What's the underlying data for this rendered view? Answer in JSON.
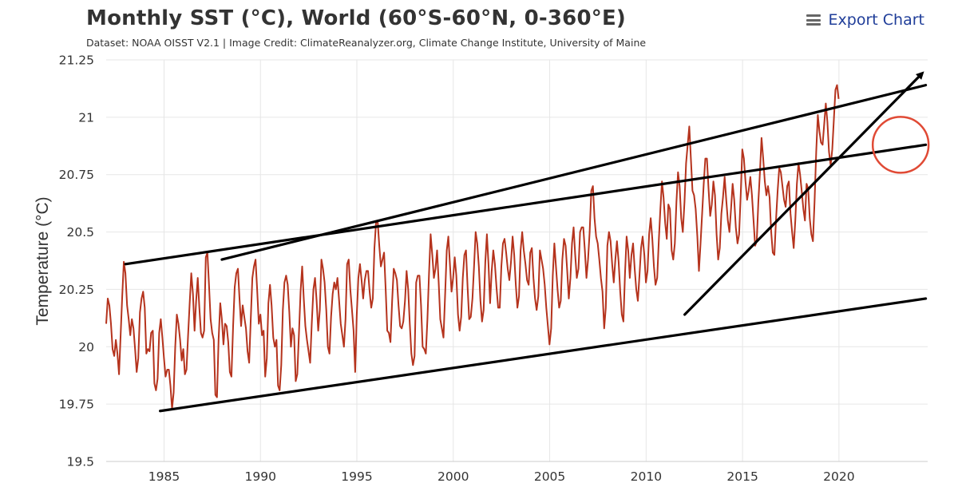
{
  "header": {
    "title": "Monthly SST (°C), World (60°S-60°N, 0-360°E)",
    "subtitle": "Dataset: NOAA OISST V2.1 | Image Credit: ClimateReanalyzer.org, Climate Change Institute, University of Maine",
    "export_label": "Export Chart",
    "menu_icon": "hamburger-menu-icon"
  },
  "chart_data": {
    "type": "line",
    "ylabel": "Temperature (°C)",
    "xlabel": "",
    "xlim": [
      1982.0,
      2024.6
    ],
    "ylim": [
      19.5,
      21.25
    ],
    "grid": true,
    "x_ticks": [
      1985,
      1990,
      1995,
      2000,
      2005,
      2010,
      2015,
      2020
    ],
    "y_ticks": [
      19.5,
      19.75,
      20,
      20.25,
      20.5,
      20.75,
      21,
      21.25
    ],
    "y_tick_labels": [
      "19.5",
      "19.75",
      "20",
      "20.25",
      "20.5",
      "20.75",
      "21",
      "21.25"
    ],
    "line_color": "#b5331d",
    "series": [
      {
        "x_start": 1982.0,
        "x_step": 0.0833,
        "values": [
          20.1,
          20.21,
          20.18,
          20.1,
          19.99,
          19.96,
          20.03,
          19.97,
          19.88,
          20.05,
          20.22,
          20.37,
          20.32,
          20.18,
          20.12,
          20.05,
          20.12,
          20.08,
          19.99,
          19.89,
          19.95,
          20.15,
          20.21,
          20.24,
          20.17,
          19.97,
          19.99,
          19.98,
          20.06,
          20.07,
          19.84,
          19.81,
          19.86,
          20.06,
          20.12,
          20.04,
          19.95,
          19.87,
          19.9,
          19.9,
          19.83,
          19.73,
          19.8,
          20.0,
          20.14,
          20.1,
          20.03,
          19.94,
          19.99,
          19.88,
          19.9,
          20.05,
          20.19,
          20.32,
          20.23,
          20.07,
          20.2,
          20.3,
          20.17,
          20.06,
          20.04,
          20.07,
          20.39,
          20.41,
          20.27,
          20.12,
          20.06,
          20.03,
          19.79,
          19.78,
          20.03,
          20.19,
          20.12,
          20.01,
          20.1,
          20.09,
          20.02,
          19.89,
          19.87,
          20.09,
          20.26,
          20.32,
          20.34,
          20.21,
          20.09,
          20.18,
          20.13,
          20.08,
          19.98,
          19.93,
          20.12,
          20.3,
          20.35,
          20.38,
          20.25,
          20.1,
          20.14,
          20.05,
          20.07,
          19.87,
          19.95,
          20.19,
          20.27,
          20.18,
          20.04,
          20.0,
          20.03,
          19.83,
          19.81,
          19.92,
          20.16,
          20.28,
          20.31,
          20.27,
          20.15,
          20.0,
          20.08,
          20.05,
          19.85,
          19.88,
          20.06,
          20.24,
          20.35,
          20.21,
          20.09,
          20.03,
          19.98,
          19.93,
          20.1,
          20.25,
          20.3,
          20.2,
          20.07,
          20.16,
          20.38,
          20.34,
          20.28,
          20.16,
          20.0,
          19.97,
          20.13,
          20.23,
          20.28,
          20.25,
          20.3,
          20.2,
          20.1,
          20.05,
          20.0,
          20.12,
          20.36,
          20.38,
          20.25,
          20.16,
          20.07,
          19.89,
          20.14,
          20.3,
          20.36,
          20.29,
          20.21,
          20.29,
          20.33,
          20.33,
          20.24,
          20.17,
          20.21,
          20.43,
          20.54,
          20.55,
          20.44,
          20.35,
          20.38,
          20.41,
          20.25,
          20.07,
          20.06,
          20.02,
          20.2,
          20.34,
          20.32,
          20.29,
          20.18,
          20.09,
          20.08,
          20.11,
          20.2,
          20.33,
          20.25,
          20.1,
          19.97,
          19.92,
          19.96,
          20.28,
          20.31,
          20.31,
          20.18,
          20.0,
          19.99,
          19.97,
          20.12,
          20.32,
          20.49,
          20.4,
          20.3,
          20.34,
          20.42,
          20.28,
          20.12,
          20.08,
          20.04,
          20.23,
          20.42,
          20.48,
          20.36,
          20.24,
          20.3,
          20.39,
          20.31,
          20.14,
          20.07,
          20.13,
          20.3,
          20.4,
          20.42,
          20.26,
          20.12,
          20.13,
          20.21,
          20.35,
          20.5,
          20.45,
          20.35,
          20.2,
          20.11,
          20.16,
          20.37,
          20.49,
          20.36,
          20.19,
          20.33,
          20.42,
          20.36,
          20.26,
          20.17,
          20.17,
          20.35,
          20.45,
          20.47,
          20.41,
          20.34,
          20.29,
          20.37,
          20.48,
          20.4,
          20.27,
          20.17,
          20.22,
          20.42,
          20.5,
          20.42,
          20.36,
          20.29,
          20.27,
          20.41,
          20.43,
          20.3,
          20.21,
          20.16,
          20.22,
          20.42,
          20.38,
          20.34,
          20.27,
          20.17,
          20.09,
          20.01,
          20.08,
          20.31,
          20.45,
          20.35,
          20.25,
          20.17,
          20.2,
          20.38,
          20.47,
          20.44,
          20.33,
          20.21,
          20.3,
          20.45,
          20.52,
          20.4,
          20.3,
          20.34,
          20.5,
          20.52,
          20.52,
          20.42,
          20.3,
          20.38,
          20.5,
          20.68,
          20.7,
          20.56,
          20.48,
          20.45,
          20.38,
          20.3,
          20.24,
          20.08,
          20.17,
          20.44,
          20.5,
          20.46,
          20.36,
          20.28,
          20.38,
          20.46,
          20.37,
          20.24,
          20.14,
          20.11,
          20.32,
          20.48,
          20.42,
          20.3,
          20.4,
          20.45,
          20.34,
          20.25,
          20.2,
          20.31,
          20.43,
          20.48,
          20.4,
          20.28,
          20.33,
          20.49,
          20.56,
          20.47,
          20.35,
          20.27,
          20.3,
          20.46,
          20.6,
          20.72,
          20.65,
          20.54,
          20.47,
          20.62,
          20.6,
          20.42,
          20.38,
          20.45,
          20.63,
          20.76,
          20.7,
          20.56,
          20.5,
          20.63,
          20.8,
          20.88,
          20.96,
          20.82,
          20.68,
          20.66,
          20.6,
          20.48,
          20.33,
          20.45,
          20.58,
          20.71,
          20.82,
          20.82,
          20.69,
          20.57,
          20.62,
          20.72,
          20.66,
          20.49,
          20.38,
          20.43,
          20.58,
          20.65,
          20.74,
          20.64,
          20.55,
          20.5,
          20.6,
          20.71,
          20.64,
          20.52,
          20.45,
          20.49,
          20.66,
          20.86,
          20.82,
          20.72,
          20.64,
          20.68,
          20.74,
          20.66,
          20.55,
          20.44,
          20.46,
          20.63,
          20.76,
          20.91,
          20.82,
          20.72,
          20.66,
          20.7,
          20.65,
          20.5,
          20.41,
          20.4,
          20.55,
          20.68,
          20.78,
          20.76,
          20.7,
          20.64,
          20.61,
          20.7,
          20.72,
          20.58,
          20.5,
          20.43,
          20.55,
          20.71,
          20.8,
          20.75,
          20.68,
          20.6,
          20.55,
          20.71,
          20.69,
          20.56,
          20.49,
          20.46,
          20.63,
          20.85,
          21.01,
          20.94,
          20.89,
          20.88,
          20.97,
          21.06,
          20.98,
          20.85,
          20.79,
          20.86,
          20.99,
          21.12,
          21.14,
          21.08
        ]
      }
    ],
    "annotations": {
      "trend_lines": [
        {
          "name": "upper-channel-line",
          "x": [
            1983.0,
            2024.5
          ],
          "y": [
            20.36,
            20.88
          ]
        },
        {
          "name": "outer-upper-line",
          "x": [
            1988.0,
            2024.5
          ],
          "y": [
            20.38,
            21.14
          ]
        },
        {
          "name": "lower-channel-line",
          "x": [
            1984.8,
            2024.5
          ],
          "y": [
            19.72,
            20.21
          ]
        }
      ],
      "arrow": {
        "name": "steep-trend-arrow",
        "x": [
          2012.0,
          2024.3
        ],
        "y": [
          20.14,
          21.19
        ]
      },
      "circle": {
        "name": "recent-peak-circle",
        "x": 2023.2,
        "y": 20.88,
        "color": "#e04a35"
      }
    }
  }
}
